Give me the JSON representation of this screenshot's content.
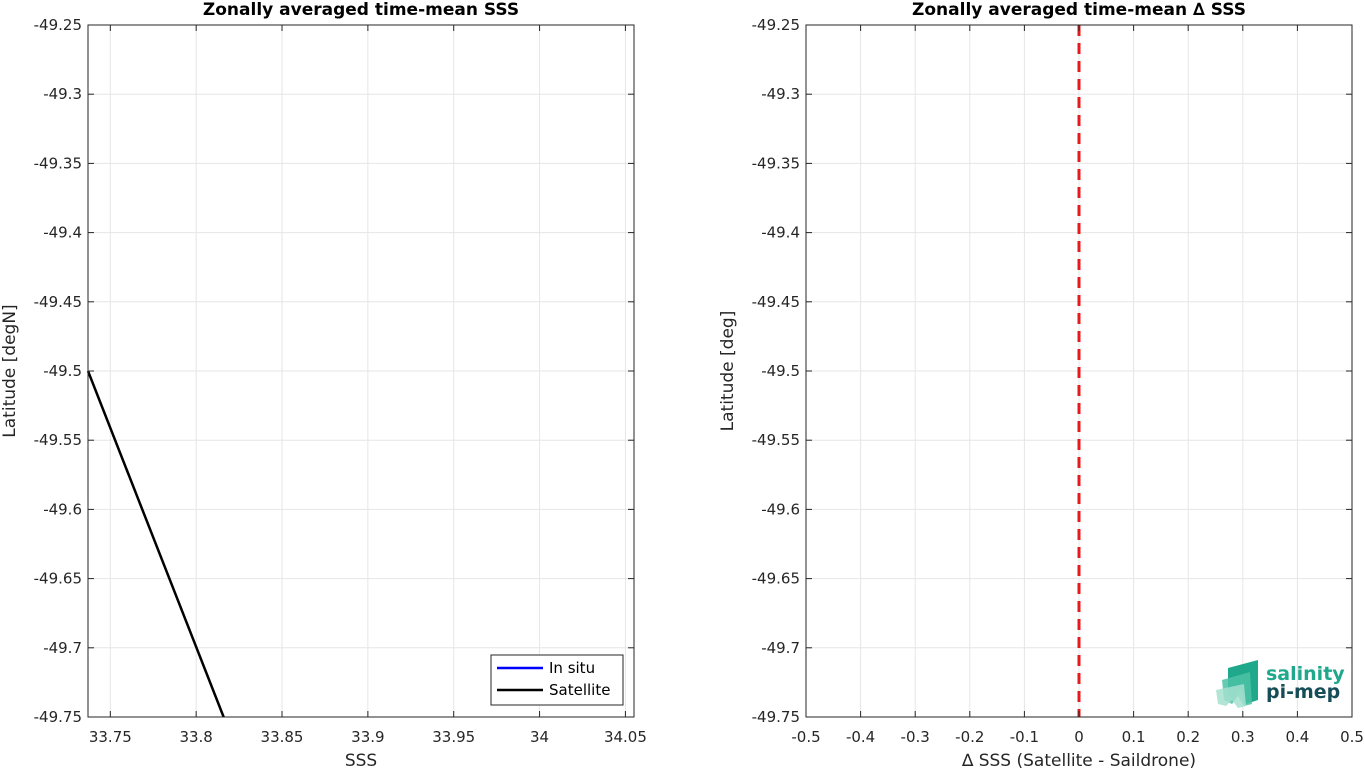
{
  "chart_data": [
    {
      "type": "line",
      "title": "Zonally averaged time-mean SSS",
      "xlabel": "SSS",
      "ylabel": "Latitude [degN]",
      "xlim": [
        33.737,
        34.055
      ],
      "ylim": [
        -49.75,
        -49.25
      ],
      "xticks": [
        33.75,
        33.8,
        33.85,
        33.9,
        33.95,
        34,
        34.05
      ],
      "xtick_labels": [
        "33.75",
        "33.8",
        "33.85",
        "33.9",
        "33.95",
        "34",
        "34.05"
      ],
      "yticks": [
        -49.25,
        -49.3,
        -49.35,
        -49.4,
        -49.45,
        -49.5,
        -49.55,
        -49.6,
        -49.65,
        -49.7,
        -49.75
      ],
      "ytick_labels": [
        "-49.25",
        "-49.3",
        "-49.35",
        "-49.4",
        "-49.45",
        "-49.5",
        "-49.55",
        "-49.6",
        "-49.65",
        "-49.7",
        "-49.75"
      ],
      "grid": true,
      "legend_position": "bottom-right",
      "series": [
        {
          "name": "In situ",
          "color": "#0000ff",
          "points": []
        },
        {
          "name": "Satellite",
          "color": "#000000",
          "points": [
            [
              33.737,
              -49.5
            ],
            [
              33.816,
              -49.75
            ]
          ]
        }
      ]
    },
    {
      "type": "line",
      "title": "Zonally averaged time-mean ∆ SSS",
      "xlabel": "∆ SSS (Satellite - Saildrone)",
      "ylabel": "Latitude [deg]",
      "xlim": [
        -0.5,
        0.5
      ],
      "ylim": [
        -49.75,
        -49.25
      ],
      "xticks": [
        -0.5,
        -0.4,
        -0.3,
        -0.2,
        -0.1,
        0,
        0.1,
        0.2,
        0.3,
        0.4,
        0.5
      ],
      "xtick_labels": [
        "-0.5",
        "-0.4",
        "-0.3",
        "-0.2",
        "-0.1",
        "0",
        "0.1",
        "0.2",
        "0.3",
        "0.4",
        "0.5"
      ],
      "yticks": [
        -49.25,
        -49.3,
        -49.35,
        -49.4,
        -49.45,
        -49.5,
        -49.55,
        -49.6,
        -49.65,
        -49.7,
        -49.75
      ],
      "ytick_labels": [
        "-49.25",
        "-49.3",
        "-49.35",
        "-49.4",
        "-49.45",
        "-49.5",
        "-49.55",
        "-49.6",
        "-49.65",
        "-49.7",
        "-49.75"
      ],
      "grid": true,
      "reference_line": {
        "x": 0,
        "color": "#e41a1c",
        "style": "dashed"
      }
    }
  ],
  "logo": {
    "line1": "salinity",
    "line2": "pi-mep",
    "color1": "#1fa88c",
    "color2": "#174d57"
  }
}
